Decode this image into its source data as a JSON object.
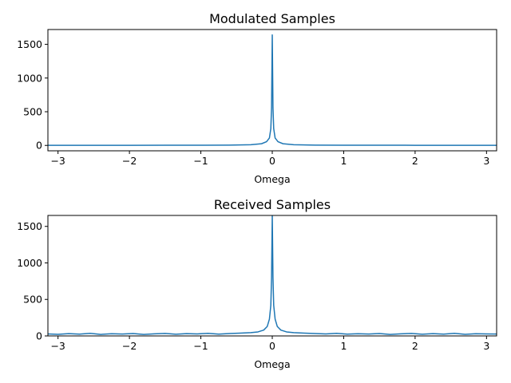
{
  "chart_data": [
    {
      "type": "line",
      "title": "Modulated Samples",
      "xlabel": "Omega",
      "ylabel": "",
      "xlim": [
        -3.1416,
        3.1416
      ],
      "ylim": [
        -80,
        1720
      ],
      "xticks": [
        -3,
        -2,
        -1,
        0,
        1,
        2,
        3
      ],
      "xtick_labels": [
        "−3",
        "−2",
        "−1",
        "0",
        "1",
        "2",
        "3"
      ],
      "yticks": [
        0,
        500,
        1000,
        1500
      ],
      "ytick_labels": [
        "0",
        "500",
        "1000",
        "1500"
      ],
      "grid": false,
      "color": "#1f77b4",
      "series": [
        {
          "x": [
            -3.1416,
            -2.5,
            -2.0,
            -1.5,
            -1.0,
            -0.6,
            -0.3,
            -0.15,
            -0.08,
            -0.04,
            -0.02,
            -0.01,
            -0.004,
            0.0,
            0.004,
            0.01,
            0.02,
            0.04,
            0.08,
            0.15,
            0.3,
            0.6,
            1.0,
            1.5,
            2.0,
            2.5,
            3.1416
          ],
          "y": [
            2,
            2,
            2,
            3,
            3,
            5,
            10,
            25,
            55,
            110,
            250,
            560,
            1200,
            1640,
            1200,
            560,
            250,
            110,
            55,
            25,
            10,
            5,
            3,
            3,
            2,
            2,
            2
          ]
        }
      ]
    },
    {
      "type": "line",
      "title": "Received Samples",
      "xlabel": "Omega",
      "ylabel": "",
      "xlim": [
        -3.1416,
        3.1416
      ],
      "ylim": [
        0,
        1650
      ],
      "xticks": [
        -3,
        -2,
        -1,
        0,
        1,
        2,
        3
      ],
      "xtick_labels": [
        "−3",
        "−2",
        "−1",
        "0",
        "1",
        "2",
        "3"
      ],
      "yticks": [
        0,
        500,
        1000,
        1500
      ],
      "ytick_labels": [
        "0",
        "500",
        "1000",
        "1500"
      ],
      "grid": false,
      "color": "#1f77b4",
      "series": [
        {
          "x": [
            -3.1416,
            -3.0,
            -2.85,
            -2.7,
            -2.55,
            -2.4,
            -2.25,
            -2.1,
            -1.95,
            -1.8,
            -1.65,
            -1.5,
            -1.35,
            -1.2,
            -1.05,
            -0.9,
            -0.75,
            -0.6,
            -0.45,
            -0.3,
            -0.2,
            -0.12,
            -0.07,
            -0.04,
            -0.02,
            -0.01,
            0.0,
            0.01,
            0.02,
            0.04,
            0.07,
            0.12,
            0.2,
            0.3,
            0.45,
            0.6,
            0.75,
            0.9,
            1.05,
            1.2,
            1.35,
            1.5,
            1.65,
            1.8,
            1.95,
            2.1,
            2.25,
            2.4,
            2.55,
            2.7,
            2.85,
            3.0,
            3.1416
          ],
          "y": [
            28,
            22,
            32,
            24,
            35,
            21,
            30,
            26,
            33,
            20,
            29,
            34,
            23,
            31,
            27,
            36,
            25,
            33,
            38,
            45,
            55,
            80,
            130,
            230,
            420,
            800,
            1650,
            800,
            420,
            230,
            130,
            80,
            55,
            45,
            38,
            33,
            27,
            35,
            24,
            30,
            26,
            33,
            21,
            29,
            34,
            23,
            31,
            25,
            36,
            22,
            30,
            27,
            26
          ]
        }
      ]
    }
  ]
}
